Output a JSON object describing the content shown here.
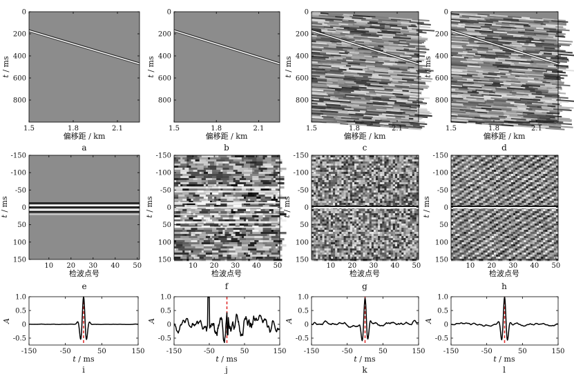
{
  "figure": {
    "row1": {
      "xlabel": "偏移距 / km",
      "ylabel_t": "t",
      "ylabel_unit": " / ms",
      "xticks": [
        "1.5",
        "1.8",
        "2.1"
      ],
      "yticks": [
        "0",
        "200",
        "400",
        "600",
        "800"
      ],
      "xlim": [
        1.5,
        2.25
      ],
      "ylim": [
        0,
        1000
      ],
      "event": {
        "x": [
          1.5,
          2.25
        ],
        "t": [
          170,
          470
        ]
      },
      "panels": [
        {
          "label": "a",
          "noise": "clean"
        },
        {
          "label": "b",
          "noise": "clean"
        },
        {
          "label": "c",
          "noise": "noisy"
        },
        {
          "label": "d",
          "noise": "noisy"
        }
      ]
    },
    "row2": {
      "xlabel": "检波点号",
      "ylabel_t": "t",
      "ylabel_unit": " / ms",
      "xticks": [
        "10",
        "20",
        "30",
        "40",
        "50"
      ],
      "yticks": [
        "-150",
        "-100",
        "-50",
        "0",
        "50",
        "100",
        "150"
      ],
      "xlim": [
        1,
        51
      ],
      "ylim": [
        -150,
        150
      ],
      "panels": [
        {
          "label": "e",
          "style": "flat"
        },
        {
          "label": "f",
          "style": "horizontal-noise"
        },
        {
          "label": "g",
          "style": "noise"
        },
        {
          "label": "h",
          "style": "diagonal-noise"
        }
      ]
    },
    "row3": {
      "xlabel_t": "t",
      "xlabel_unit": " / ms",
      "ylabel": "A",
      "xticks": [
        "-150",
        "-50",
        "50",
        "150"
      ],
      "yticks": [
        "-0.5",
        "0",
        "0.5",
        "1.0"
      ],
      "xlim": [
        -150,
        150
      ],
      "ylim": [
        -0.75,
        1.0
      ],
      "peak_marker_color": "#e03030",
      "panels": [
        {
          "label": "i",
          "curve": "clean"
        },
        {
          "label": "j",
          "curve": "messy"
        },
        {
          "label": "k",
          "curve": "noisy"
        },
        {
          "label": "l",
          "curve": "cleaner"
        }
      ]
    }
  }
}
